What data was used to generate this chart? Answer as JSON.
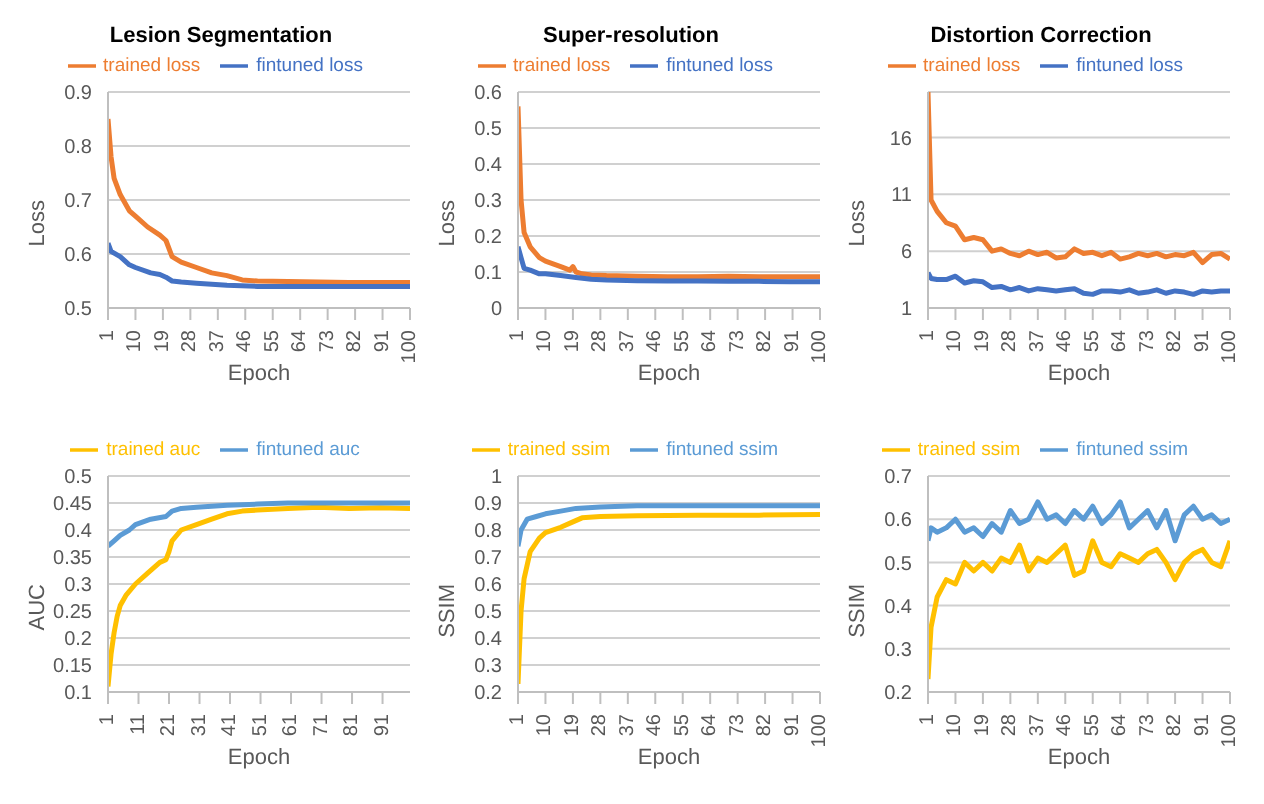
{
  "chart_data": [
    {
      "type": "line",
      "title": "Lesion Segmentation",
      "xlabel": "Epoch",
      "ylabel": "Loss",
      "xlim": [
        1,
        100
      ],
      "xticks": [
        1,
        10,
        19,
        28,
        37,
        46,
        55,
        64,
        73,
        82,
        91,
        100
      ],
      "ylim": [
        0.5,
        0.9
      ],
      "yticks": [
        0.5,
        0.6,
        0.7,
        0.8,
        0.9
      ],
      "grid": "y",
      "legend": "top",
      "marker": "none",
      "line_style": "solid",
      "series": [
        {
          "name": "trained loss",
          "color": "#ed7d31",
          "x": [
            1,
            2,
            3,
            5,
            8,
            10,
            14,
            18,
            20,
            22,
            25,
            30,
            35,
            40,
            45,
            50,
            60,
            70,
            80,
            90,
            100
          ],
          "values": [
            0.85,
            0.78,
            0.74,
            0.71,
            0.68,
            0.67,
            0.65,
            0.635,
            0.625,
            0.595,
            0.585,
            0.575,
            0.565,
            0.56,
            0.552,
            0.55,
            0.549,
            0.548,
            0.547,
            0.547,
            0.547
          ]
        },
        {
          "name": "fintuned loss",
          "color": "#4472c4",
          "x": [
            1,
            2,
            5,
            8,
            10,
            15,
            18,
            20,
            22,
            25,
            30,
            40,
            50,
            60,
            70,
            80,
            90,
            100
          ],
          "values": [
            0.62,
            0.605,
            0.595,
            0.58,
            0.575,
            0.565,
            0.562,
            0.557,
            0.55,
            0.548,
            0.546,
            0.542,
            0.54,
            0.54,
            0.54,
            0.54,
            0.54,
            0.54
          ]
        }
      ]
    },
    {
      "type": "line",
      "title": "Super-resolution",
      "xlabel": "Epoch",
      "ylabel": "Loss",
      "xlim": [
        1,
        100
      ],
      "xticks": [
        1,
        10,
        19,
        28,
        37,
        46,
        55,
        64,
        73,
        82,
        91,
        100
      ],
      "ylim": [
        0,
        0.6
      ],
      "yticks": [
        0,
        0.1,
        0.2,
        0.3,
        0.4,
        0.5,
        0.6
      ],
      "grid": "y",
      "legend": "top",
      "marker": "none",
      "line_style": "solid",
      "series": [
        {
          "name": "trained loss",
          "color": "#ed7d31",
          "x": [
            1,
            2,
            3,
            5,
            8,
            10,
            15,
            18,
            19,
            20,
            22,
            25,
            30,
            40,
            50,
            60,
            70,
            80,
            90,
            100
          ],
          "values": [
            0.56,
            0.3,
            0.21,
            0.17,
            0.14,
            0.13,
            0.115,
            0.105,
            0.115,
            0.1,
            0.095,
            0.092,
            0.09,
            0.088,
            0.087,
            0.087,
            0.088,
            0.087,
            0.087,
            0.087
          ]
        },
        {
          "name": "fintuned loss",
          "color": "#4472c4",
          "x": [
            1,
            2,
            3,
            5,
            8,
            10,
            15,
            20,
            25,
            30,
            40,
            50,
            60,
            70,
            80,
            90,
            100
          ],
          "values": [
            0.17,
            0.14,
            0.11,
            0.105,
            0.095,
            0.095,
            0.09,
            0.085,
            0.08,
            0.078,
            0.076,
            0.075,
            0.075,
            0.074,
            0.074,
            0.073,
            0.073
          ]
        }
      ]
    },
    {
      "type": "line",
      "title": "Distortion Correction",
      "xlabel": "Epoch",
      "ylabel": "Loss",
      "xlim": [
        1,
        100
      ],
      "xticks": [
        1,
        10,
        19,
        28,
        37,
        46,
        55,
        64,
        73,
        82,
        91,
        100
      ],
      "ylim": [
        1,
        20
      ],
      "yticks": [
        1,
        6,
        11,
        16
      ],
      "grid": "y",
      "legend": "top",
      "marker": "none",
      "line_style": "solid",
      "series": [
        {
          "name": "trained loss",
          "color": "#ed7d31",
          "x": [
            1,
            2,
            4,
            7,
            10,
            13,
            16,
            19,
            22,
            25,
            28,
            31,
            34,
            37,
            40,
            43,
            46,
            49,
            52,
            55,
            58,
            61,
            64,
            67,
            70,
            73,
            76,
            79,
            82,
            85,
            88,
            91,
            94,
            97,
            100
          ],
          "values": [
            20,
            10.5,
            9.5,
            8.5,
            8.2,
            7,
            7.2,
            7,
            6,
            6.2,
            5.8,
            5.6,
            6,
            5.7,
            5.9,
            5.4,
            5.5,
            6.2,
            5.8,
            5.9,
            5.6,
            5.9,
            5.3,
            5.5,
            5.8,
            5.6,
            5.8,
            5.5,
            5.7,
            5.6,
            5.9,
            5,
            5.7,
            5.8,
            5.3
          ]
        },
        {
          "name": "fintuned loss",
          "color": "#4472c4",
          "x": [
            1,
            2,
            4,
            7,
            10,
            13,
            16,
            19,
            22,
            25,
            28,
            31,
            34,
            37,
            40,
            43,
            46,
            49,
            52,
            55,
            58,
            61,
            64,
            67,
            70,
            73,
            76,
            79,
            82,
            85,
            88,
            91,
            94,
            97,
            100
          ],
          "values": [
            4.1,
            3.6,
            3.5,
            3.5,
            3.8,
            3.2,
            3.4,
            3.3,
            2.8,
            2.9,
            2.6,
            2.8,
            2.5,
            2.7,
            2.6,
            2.5,
            2.6,
            2.7,
            2.3,
            2.2,
            2.5,
            2.5,
            2.4,
            2.6,
            2.3,
            2.4,
            2.6,
            2.3,
            2.5,
            2.4,
            2.2,
            2.5,
            2.4,
            2.5,
            2.5
          ]
        }
      ]
    },
    {
      "type": "line",
      "xlabel": "Epoch",
      "ylabel": "AUC",
      "xlim": [
        1,
        100
      ],
      "xticks": [
        1,
        11,
        21,
        31,
        41,
        51,
        61,
        71,
        81,
        91
      ],
      "ylim": [
        0.1,
        0.5
      ],
      "yticks": [
        0.1,
        0.15,
        0.2,
        0.25,
        0.3,
        0.35,
        0.4,
        0.45,
        0.5
      ],
      "grid": "y",
      "legend": "top",
      "marker": "none",
      "line_style": "solid",
      "series": [
        {
          "name": "trained auc",
          "color": "#ffc000",
          "x": [
            1,
            2,
            3,
            4,
            5,
            7,
            10,
            14,
            18,
            20,
            21,
            22,
            25,
            30,
            35,
            40,
            45,
            50,
            60,
            70,
            80,
            90,
            100
          ],
          "values": [
            0.11,
            0.17,
            0.21,
            0.24,
            0.26,
            0.28,
            0.3,
            0.32,
            0.34,
            0.345,
            0.36,
            0.38,
            0.4,
            0.41,
            0.42,
            0.43,
            0.435,
            0.437,
            0.44,
            0.442,
            0.44,
            0.441,
            0.44
          ]
        },
        {
          "name": "fintuned auc",
          "color": "#5b9bd5",
          "x": [
            1,
            3,
            5,
            8,
            10,
            15,
            20,
            22,
            25,
            30,
            40,
            50,
            60,
            70,
            80,
            90,
            100
          ],
          "values": [
            0.37,
            0.38,
            0.39,
            0.4,
            0.41,
            0.42,
            0.425,
            0.435,
            0.44,
            0.442,
            0.446,
            0.448,
            0.45,
            0.45,
            0.45,
            0.45,
            0.45
          ]
        }
      ]
    },
    {
      "type": "line",
      "xlabel": "Epoch",
      "ylabel": "SSIM",
      "xlim": [
        1,
        100
      ],
      "xticks": [
        1,
        10,
        19,
        28,
        37,
        46,
        55,
        64,
        73,
        82,
        91,
        100
      ],
      "ylim": [
        0.2,
        1
      ],
      "yticks": [
        0.2,
        0.3,
        0.4,
        0.5,
        0.6,
        0.7,
        0.8,
        0.9,
        1
      ],
      "grid": "y",
      "legend": "top",
      "marker": "none",
      "line_style": "solid",
      "series": [
        {
          "name": "trained ssim",
          "color": "#ffc000",
          "x": [
            1,
            2,
            3,
            5,
            8,
            10,
            15,
            19,
            22,
            28,
            40,
            60,
            80,
            100
          ],
          "values": [
            0.23,
            0.5,
            0.62,
            0.72,
            0.77,
            0.79,
            0.81,
            0.83,
            0.845,
            0.85,
            0.853,
            0.855,
            0.855,
            0.857
          ]
        },
        {
          "name": "fintuned ssim",
          "color": "#5b9bd5",
          "x": [
            1,
            2,
            4,
            7,
            10,
            15,
            20,
            28,
            40,
            60,
            80,
            100
          ],
          "values": [
            0.74,
            0.8,
            0.84,
            0.85,
            0.86,
            0.87,
            0.88,
            0.885,
            0.89,
            0.89,
            0.89,
            0.89
          ]
        }
      ]
    },
    {
      "type": "line",
      "xlabel": "Epoch",
      "ylabel": "SSIM",
      "xlim": [
        1,
        100
      ],
      "xticks": [
        1,
        10,
        19,
        28,
        37,
        46,
        55,
        64,
        73,
        82,
        91,
        100
      ],
      "ylim": [
        0.2,
        0.7
      ],
      "yticks": [
        0.2,
        0.3,
        0.4,
        0.5,
        0.6,
        0.7
      ],
      "grid": "y",
      "legend": "top",
      "marker": "none",
      "line_style": "solid",
      "series": [
        {
          "name": "trained ssim",
          "color": "#ffc000",
          "x": [
            1,
            2,
            4,
            7,
            10,
            13,
            16,
            19,
            22,
            25,
            28,
            31,
            34,
            37,
            40,
            43,
            46,
            49,
            52,
            55,
            58,
            61,
            64,
            67,
            70,
            73,
            76,
            79,
            82,
            85,
            88,
            91,
            94,
            97,
            100
          ],
          "values": [
            0.23,
            0.35,
            0.42,
            0.46,
            0.45,
            0.5,
            0.48,
            0.5,
            0.48,
            0.51,
            0.5,
            0.54,
            0.48,
            0.51,
            0.5,
            0.52,
            0.54,
            0.47,
            0.48,
            0.55,
            0.5,
            0.49,
            0.52,
            0.51,
            0.5,
            0.52,
            0.53,
            0.5,
            0.46,
            0.5,
            0.52,
            0.53,
            0.5,
            0.49,
            0.55
          ]
        },
        {
          "name": "fintuned ssim",
          "color": "#5b9bd5",
          "x": [
            1,
            2,
            4,
            7,
            10,
            13,
            16,
            19,
            22,
            25,
            28,
            31,
            34,
            37,
            40,
            43,
            46,
            49,
            52,
            55,
            58,
            61,
            64,
            67,
            70,
            73,
            76,
            79,
            82,
            85,
            88,
            91,
            94,
            97,
            100
          ],
          "values": [
            0.55,
            0.58,
            0.57,
            0.58,
            0.6,
            0.57,
            0.58,
            0.56,
            0.59,
            0.57,
            0.62,
            0.59,
            0.6,
            0.64,
            0.6,
            0.61,
            0.59,
            0.62,
            0.6,
            0.63,
            0.59,
            0.61,
            0.64,
            0.58,
            0.6,
            0.62,
            0.58,
            0.62,
            0.55,
            0.61,
            0.63,
            0.6,
            0.61,
            0.59,
            0.6
          ]
        }
      ]
    }
  ]
}
